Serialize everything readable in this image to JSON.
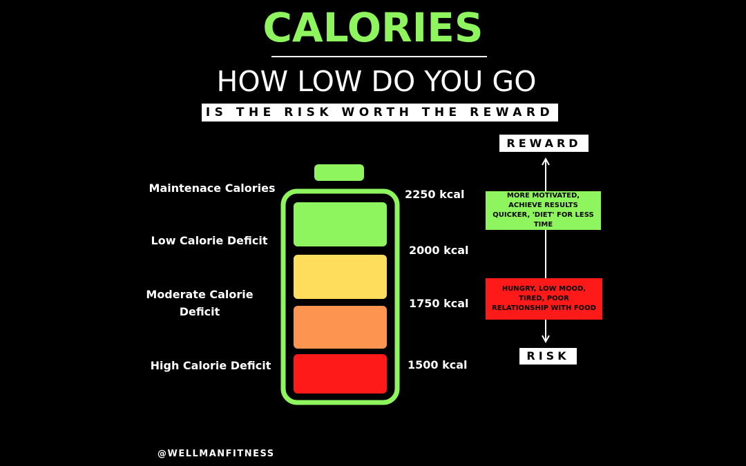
{
  "header": {
    "title": "CALORIES",
    "subtitle": "HOW LOW DO YOU GO",
    "tagline": "IS THE RISK WORTH THE REWARD"
  },
  "levels": [
    {
      "label": "Maintenace Calories",
      "kcal": "2250 kcal"
    },
    {
      "label": "Low Calorie Deficit",
      "kcal": "2000 kcal"
    },
    {
      "label": "Moderate Calorie Deficit",
      "kcal": "1750 kcal"
    },
    {
      "label": "High Calorie Deficit",
      "kcal": "1500 kcal"
    }
  ],
  "scale": {
    "top_label": "REWARD",
    "bottom_label": "RISK",
    "reward_note": "MORE MOTIVATED, ACHIEVE RESULTS QUICKER, 'DIET' FOR LESS TIME",
    "risk_note": "HUNGRY, LOW MOOD, TIRED, POOR RELATIONSHIP WITH FOOD"
  },
  "footer": {
    "handle": "@WELLMANFITNESS"
  }
}
